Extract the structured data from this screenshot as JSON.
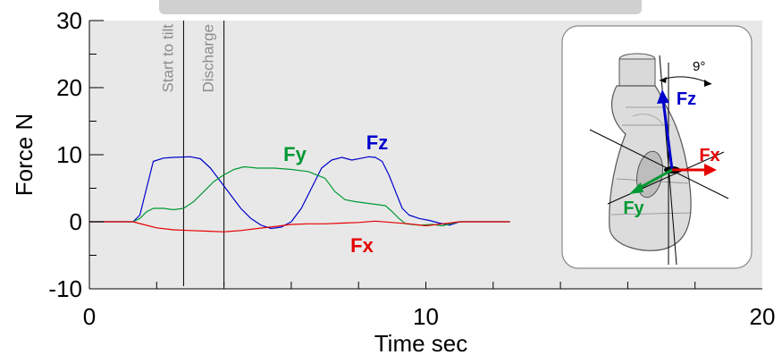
{
  "chart_data": {
    "type": "line",
    "xlabel": "Time  sec",
    "ylabel": "Force  N",
    "xlim": [
      0,
      20
    ],
    "ylim": [
      -10,
      30
    ],
    "x_ticks": [
      0,
      10,
      20
    ],
    "y_ticks": [
      -10,
      0,
      10,
      20,
      30
    ],
    "background": "#e8e8e8",
    "grid": false,
    "events": [
      {
        "label": "Start to tilt",
        "x": 2.8
      },
      {
        "label": "Discharge",
        "x": 4.0
      }
    ],
    "series": [
      {
        "name": "Fz",
        "color": "#0000cc",
        "x": [
          0,
          1.3,
          1.5,
          1.7,
          1.9,
          2.2,
          2.5,
          3.0,
          3.3,
          3.6,
          3.9,
          4.2,
          4.5,
          4.8,
          5.1,
          5.4,
          5.7,
          6.0,
          6.3,
          6.6,
          6.9,
          7.2,
          7.5,
          7.8,
          8.1,
          8.3,
          8.5,
          8.7,
          8.9,
          9.1,
          9.3,
          9.5,
          9.8,
          10.1,
          10.4,
          10.7,
          11.0,
          11.5,
          12.5
        ],
        "values": [
          0,
          0,
          1,
          5,
          9,
          9.5,
          9.6,
          9.7,
          9.4,
          8.0,
          6.0,
          4.0,
          2.0,
          0.5,
          -0.5,
          -1,
          -0.8,
          0,
          2,
          5,
          8,
          9.2,
          9.6,
          9.2,
          9.5,
          9.7,
          9.6,
          9.0,
          7.0,
          4.5,
          2.0,
          1.0,
          0.5,
          0.2,
          -0.2,
          -0.5,
          0,
          0,
          0
        ]
      },
      {
        "name": "Fy",
        "color": "#009933",
        "x": [
          0,
          1.3,
          1.5,
          1.7,
          1.9,
          2.2,
          2.5,
          2.8,
          3.1,
          3.4,
          3.7,
          4.0,
          4.3,
          4.6,
          5.0,
          5.5,
          6.0,
          6.5,
          7.0,
          7.3,
          7.6,
          7.9,
          8.2,
          8.5,
          8.8,
          9.0,
          9.2,
          9.4,
          9.8,
          10.2,
          10.5,
          10.8,
          11.0,
          11.5,
          12.5
        ],
        "values": [
          0,
          0,
          0.5,
          1.5,
          2.0,
          2.0,
          1.8,
          2.0,
          3.0,
          4.5,
          6.0,
          7.0,
          7.8,
          8.2,
          8.0,
          8.0,
          7.8,
          7.5,
          6.5,
          4.5,
          3.3,
          3.0,
          2.8,
          2.6,
          2.4,
          1.5,
          0.5,
          -0.3,
          -0.5,
          -0.4,
          -0.6,
          -0.2,
          0,
          0,
          0
        ]
      },
      {
        "name": "Fx",
        "color": "#e60000",
        "x": [
          0,
          1.3,
          1.6,
          2.0,
          2.5,
          3.0,
          3.5,
          4.0,
          4.5,
          5.0,
          5.5,
          6.0,
          6.5,
          7.0,
          7.5,
          8.0,
          8.5,
          9.0,
          9.5,
          10.0,
          10.5,
          11.0,
          12.5
        ],
        "values": [
          0,
          0,
          -0.4,
          -0.9,
          -1.2,
          -1.3,
          -1.4,
          -1.5,
          -1.3,
          -1.0,
          -0.7,
          -0.4,
          -0.3,
          -0.3,
          -0.2,
          -0.1,
          0.1,
          -0.1,
          -0.3,
          -0.6,
          -0.3,
          0,
          0
        ]
      }
    ]
  },
  "inset": {
    "angle_label": "9°",
    "fz_label": "Fz",
    "fx_label": "Fx",
    "fy_label": "Fy",
    "fz_color": "#0000cc",
    "fx_color": "#e60000",
    "fy_color": "#009933"
  }
}
